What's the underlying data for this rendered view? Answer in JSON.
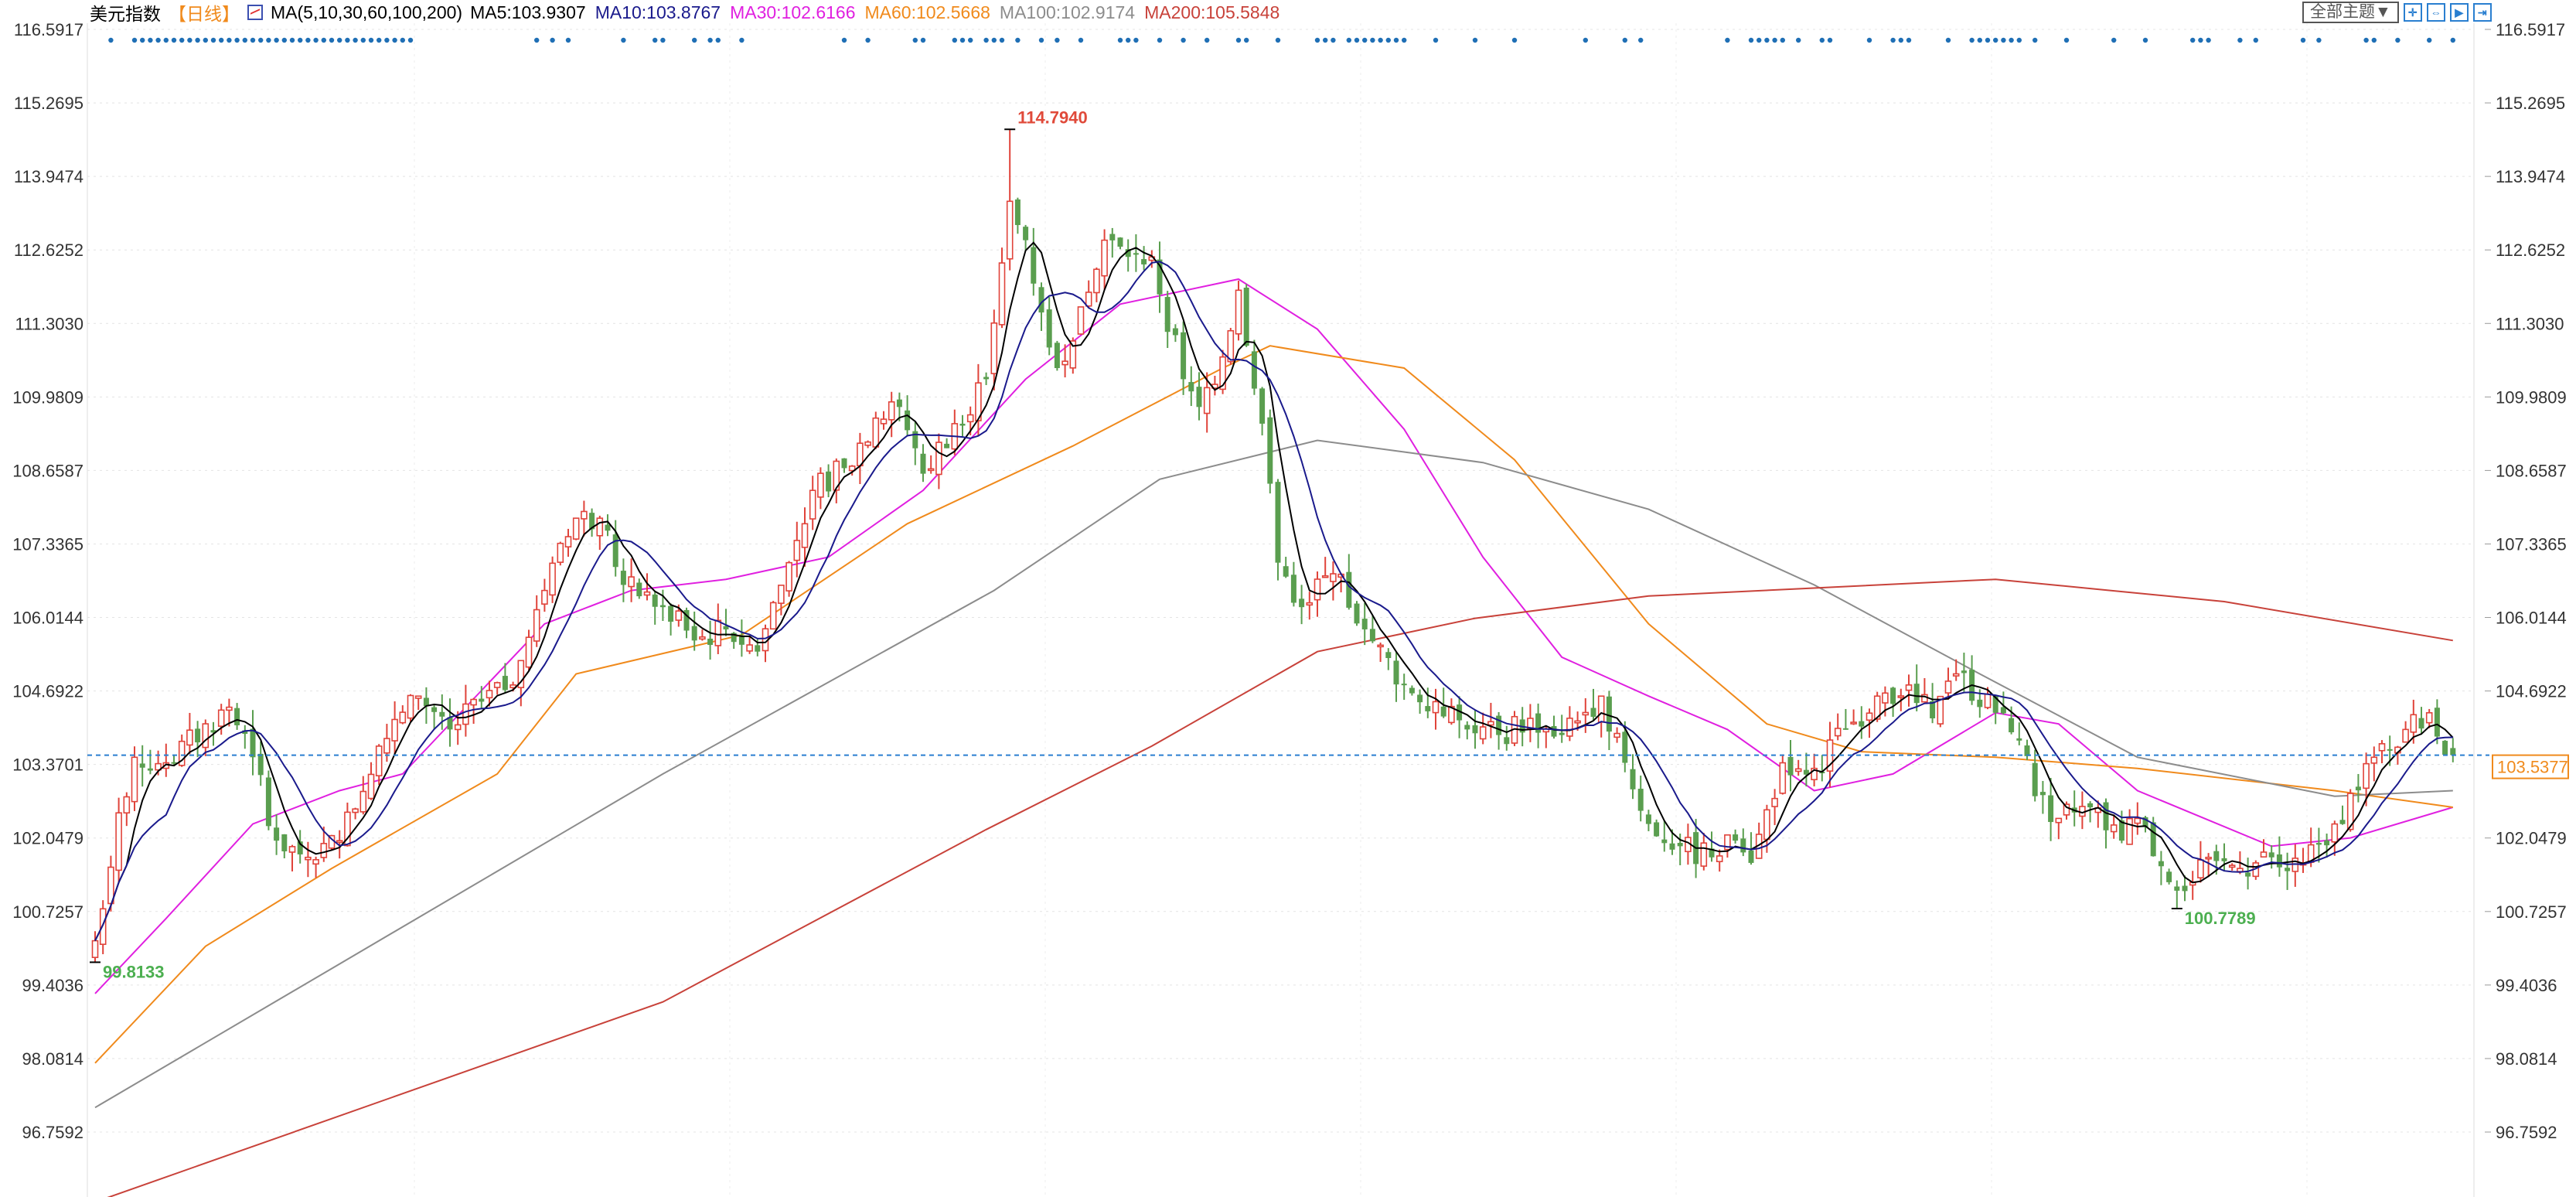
{
  "header": {
    "instrument": "美元指数",
    "period": "【日线】",
    "ma_label": "MA(5,10,30,60,100,200)",
    "ma_values": [
      {
        "key": "MA5",
        "text": "MA5:103.9307",
        "color": "#000000"
      },
      {
        "key": "MA10",
        "text": "MA10:103.8767",
        "color": "#1a1a8c"
      },
      {
        "key": "MA30",
        "text": "MA30:102.6166",
        "color": "#e020e0"
      },
      {
        "key": "MA60",
        "text": "MA60:102.5668",
        "color": "#f08a1c"
      },
      {
        "key": "MA100",
        "text": "MA100:102.9174",
        "color": "#8c8c8c"
      },
      {
        "key": "MA200",
        "text": "MA200:105.5848",
        "color": "#c8423a"
      }
    ]
  },
  "toolbar": {
    "theme_select": "全部主题▼",
    "icons": [
      "crosshair-icon",
      "fit-range-icon",
      "play-forward-icon",
      "jump-end-icon"
    ]
  },
  "chart_data": {
    "type": "candlestick",
    "title": "",
    "ylim": [
      96.7592,
      116.5917
    ],
    "y_ticks": [
      "116.5917",
      "115.2695",
      "113.9474",
      "112.6252",
      "111.3030",
      "109.9809",
      "108.6587",
      "107.3365",
      "106.0144",
      "104.6922",
      "103.3701",
      "102.0479",
      "100.7257",
      "99.4036",
      "98.0814",
      "96.7592"
    ],
    "candle_count": 300,
    "close_path": [
      [
        0,
        100.2
      ],
      [
        3,
        102.5
      ],
      [
        5,
        103.5
      ],
      [
        9,
        103.4
      ],
      [
        17,
        104.4
      ],
      [
        20,
        103.5
      ],
      [
        23,
        102.0
      ],
      [
        27,
        101.7
      ],
      [
        31,
        102.0
      ],
      [
        36,
        103.7
      ],
      [
        41,
        104.6
      ],
      [
        45,
        104.0
      ],
      [
        49,
        104.5
      ],
      [
        53,
        104.8
      ],
      [
        57,
        106.5
      ],
      [
        61,
        107.8
      ],
      [
        64,
        107.8
      ],
      [
        67,
        106.6
      ],
      [
        72,
        106.2
      ],
      [
        76,
        105.6
      ],
      [
        80,
        105.8
      ],
      [
        84,
        105.4
      ],
      [
        88,
        107.0
      ],
      [
        91,
        108.3
      ],
      [
        95,
        108.7
      ],
      [
        99,
        109.6
      ],
      [
        102,
        109.8
      ],
      [
        105,
        108.6
      ],
      [
        109,
        109.5
      ],
      [
        113,
        110.3
      ],
      [
        116,
        113.5
      ],
      [
        118,
        112.8
      ],
      [
        120,
        111.5
      ],
      [
        122,
        110.5
      ],
      [
        125,
        111.6
      ],
      [
        128,
        112.8
      ],
      [
        131,
        112.5
      ],
      [
        134,
        112.5
      ],
      [
        138,
        110.3
      ],
      [
        140,
        109.8
      ],
      [
        143,
        110.7
      ],
      [
        145,
        111.9
      ],
      [
        148,
        109.5
      ],
      [
        150,
        107.0
      ],
      [
        153,
        106.2
      ],
      [
        157,
        106.8
      ],
      [
        161,
        105.8
      ],
      [
        166,
        104.8
      ],
      [
        170,
        104.5
      ],
      [
        174,
        104.0
      ],
      [
        178,
        103.9
      ],
      [
        182,
        104.2
      ],
      [
        186,
        103.9
      ],
      [
        191,
        104.6
      ],
      [
        194,
        103.4
      ],
      [
        197,
        102.3
      ],
      [
        201,
        101.9
      ],
      [
        205,
        101.7
      ],
      [
        208,
        102.0
      ],
      [
        210,
        101.6
      ],
      [
        214,
        103.4
      ],
      [
        218,
        103.3
      ],
      [
        222,
        104.0
      ],
      [
        226,
        104.6
      ],
      [
        230,
        104.8
      ],
      [
        233,
        104.2
      ],
      [
        236,
        105.0
      ],
      [
        241,
        104.3
      ],
      [
        244,
        103.8
      ],
      [
        246,
        102.8
      ],
      [
        249,
        102.4
      ],
      [
        253,
        102.6
      ],
      [
        257,
        102.0
      ],
      [
        259,
        102.4
      ],
      [
        264,
        101.1
      ],
      [
        268,
        101.7
      ],
      [
        272,
        101.5
      ],
      [
        276,
        101.7
      ],
      [
        280,
        101.6
      ],
      [
        284,
        102.3
      ],
      [
        289,
        103.5
      ],
      [
        293,
        104.0
      ],
      [
        296,
        104.3
      ],
      [
        299,
        103.5377
      ]
    ],
    "moving_averages": [
      {
        "name": "MA30",
        "color": "#e020e0",
        "points": [
          [
            0,
            99.25
          ],
          [
            9,
            100.6
          ],
          [
            20,
            102.3
          ],
          [
            31,
            102.9
          ],
          [
            39,
            103.2
          ],
          [
            49,
            104.7
          ],
          [
            57,
            105.9
          ],
          [
            68,
            106.5
          ],
          [
            80,
            106.7
          ],
          [
            93,
            107.1
          ],
          [
            105,
            108.3
          ],
          [
            118,
            110.3
          ],
          [
            130,
            111.65
          ],
          [
            145,
            112.1
          ],
          [
            155,
            111.2
          ],
          [
            166,
            109.4
          ],
          [
            176,
            107.1
          ],
          [
            186,
            105.3
          ],
          [
            197,
            104.6
          ],
          [
            207,
            104.0
          ],
          [
            218,
            102.9
          ],
          [
            228,
            103.2
          ],
          [
            241,
            104.3
          ],
          [
            249,
            104.1
          ],
          [
            259,
            102.9
          ],
          [
            276,
            101.9
          ],
          [
            286,
            102.05
          ],
          [
            299,
            102.6
          ]
        ]
      },
      {
        "name": "MA60",
        "color": "#f08a1c",
        "points": [
          [
            0,
            98.0
          ],
          [
            14,
            100.1
          ],
          [
            30,
            101.5
          ],
          [
            51,
            103.2
          ],
          [
            61,
            105.0
          ],
          [
            82,
            105.7
          ],
          [
            103,
            107.7
          ],
          [
            124,
            109.1
          ],
          [
            143,
            110.5
          ],
          [
            149,
            110.9
          ],
          [
            166,
            110.5
          ],
          [
            180,
            108.85
          ],
          [
            197,
            105.9
          ],
          [
            212,
            104.1
          ],
          [
            224,
            103.6
          ],
          [
            241,
            103.5
          ],
          [
            259,
            103.3
          ],
          [
            284,
            102.9
          ],
          [
            299,
            102.6
          ]
        ]
      },
      {
        "name": "MA100",
        "color": "#8c8c8c",
        "points": [
          [
            0,
            97.2
          ],
          [
            30,
            99.7
          ],
          [
            72,
            103.2
          ],
          [
            114,
            106.5
          ],
          [
            135,
            108.5
          ],
          [
            155,
            109.2
          ],
          [
            176,
            108.8
          ],
          [
            197,
            107.96
          ],
          [
            218,
            106.6
          ],
          [
            239,
            105.0
          ],
          [
            259,
            103.5
          ],
          [
            284,
            102.8
          ],
          [
            299,
            102.9
          ]
        ]
      },
      {
        "name": "MA200",
        "color": "#c8423a",
        "points": [
          [
            0,
            95.5
          ],
          [
            30,
            97.0
          ],
          [
            72,
            99.1
          ],
          [
            113,
            102.2
          ],
          [
            134,
            103.7
          ],
          [
            155,
            105.4
          ],
          [
            175,
            106.0
          ],
          [
            197,
            106.4
          ],
          [
            241,
            106.7
          ],
          [
            270,
            106.3
          ],
          [
            299,
            105.6
          ]
        ]
      }
    ],
    "computed_ma": [
      {
        "name": "MA5",
        "period": 5,
        "color": "#000000"
      },
      {
        "name": "MA10",
        "period": 10,
        "color": "#1a1a8c"
      }
    ],
    "annotations": [
      {
        "index": 116,
        "value": 114.794,
        "label": "114.7940",
        "type": "high",
        "color": "#e04a3a"
      },
      {
        "index": 0,
        "value": 99.8133,
        "label": "99.8133",
        "type": "low",
        "color": "#4caf50"
      },
      {
        "index": 264,
        "value": 100.7789,
        "label": "100.7789",
        "type": "low",
        "color": "#4caf50"
      }
    ],
    "last_price": {
      "value": 103.5377,
      "label": "103.5377",
      "color": "#f08a1c",
      "line_color": "#2a7fd0"
    },
    "signal_dots": [
      2,
      5,
      6,
      7,
      8,
      9,
      10,
      11,
      12,
      13,
      14,
      15,
      16,
      17,
      18,
      19,
      20,
      21,
      22,
      23,
      24,
      25,
      26,
      27,
      28,
      29,
      30,
      31,
      32,
      33,
      34,
      35,
      36,
      37,
      38,
      39,
      40,
      56,
      58,
      60,
      67,
      71,
      72,
      76,
      78,
      79,
      82,
      95,
      98,
      104,
      105,
      109,
      110,
      111,
      113,
      114,
      115,
      117,
      120,
      122,
      125,
      130,
      131,
      132,
      135,
      138,
      141,
      145,
      146,
      150,
      155,
      156,
      157,
      159,
      160,
      161,
      162,
      163,
      164,
      165,
      166,
      170,
      175,
      180,
      189,
      194,
      196,
      207,
      210,
      211,
      212,
      213,
      214,
      216,
      219,
      220,
      225,
      228,
      229,
      230,
      235,
      238,
      239,
      240,
      241,
      242,
      243,
      244,
      246,
      250,
      256,
      260,
      266,
      267,
      268,
      272,
      274,
      280,
      282,
      288,
      289,
      292,
      296,
      299
    ],
    "colors": {
      "up": "#e0433a",
      "down": "#5a9e4f",
      "dots": "#1f6fb5"
    },
    "grid": true
  }
}
